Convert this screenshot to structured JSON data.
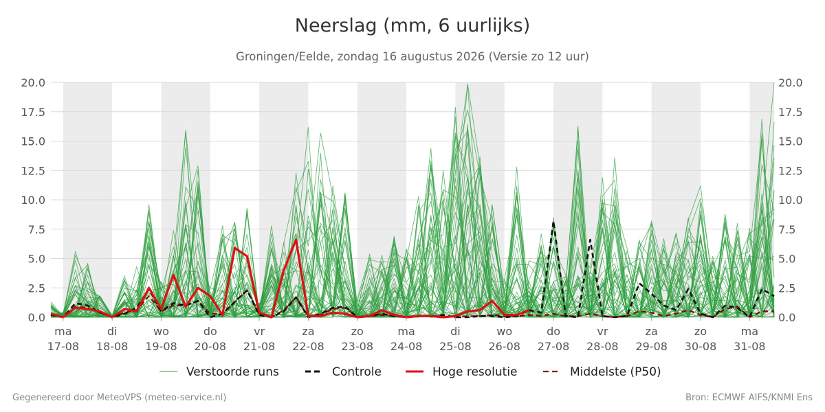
{
  "header": {
    "title": "Neerslag (mm, 6 uurlijks)",
    "subtitle": "Groningen/Eelde, zondag 16 augustus 2026 (Versie zo 12 uur)"
  },
  "footer": {
    "left": "Gegenereerd door MeteoVPS (meteo-service.nl)",
    "right": "Bron: ECMWF AIFS/KNMI Ens"
  },
  "colors": {
    "ensemble": "#2e9e3e",
    "control": "#111111",
    "high_res": "#dd1111",
    "median": "#8b0000",
    "weekend_band": "#ececec"
  },
  "chart_data": {
    "type": "line",
    "title": "Neerslag (mm, 6 uurlijks)",
    "subtitle": "Groningen/Eelde, zondag 16 augustus 2026 (Versie zo 12 uur)",
    "x_unit": "days since 17-08 00:00 (6-hourly steps)",
    "ylim": [
      0,
      20
    ],
    "yticks": [
      0.0,
      2.5,
      5.0,
      7.5,
      10.0,
      12.5,
      15.0,
      17.5,
      20.0
    ],
    "ytick_labels": [
      "0.0",
      "2.5",
      "5.0",
      "7.5",
      "10.0",
      "12.5",
      "15.0",
      "17.5",
      "20.0"
    ],
    "xlim": [
      -0.25,
      14.5
    ],
    "xticks": [
      {
        "day": "ma",
        "date": "17-08"
      },
      {
        "day": "di",
        "date": "18-08"
      },
      {
        "day": "wo",
        "date": "19-08"
      },
      {
        "day": "do",
        "date": "20-08"
      },
      {
        "day": "vr",
        "date": "21-08"
      },
      {
        "day": "za",
        "date": "22-08"
      },
      {
        "day": "zo",
        "date": "23-08"
      },
      {
        "day": "ma",
        "date": "24-08"
      },
      {
        "day": "di",
        "date": "25-08"
      },
      {
        "day": "wo",
        "date": "26-08"
      },
      {
        "day": "do",
        "date": "27-08"
      },
      {
        "day": "vr",
        "date": "28-08"
      },
      {
        "day": "za",
        "date": "29-08"
      },
      {
        "day": "zo",
        "date": "30-08"
      },
      {
        "day": "ma",
        "date": "31-08"
      }
    ],
    "shaded_bands": [
      [
        0,
        1
      ],
      [
        2,
        3
      ],
      [
        4,
        5
      ],
      [
        6,
        7
      ],
      [
        8,
        9
      ],
      [
        10,
        11
      ],
      [
        12,
        13
      ],
      [
        14,
        14.5
      ]
    ],
    "grid": true,
    "legend_position": "bottom",
    "legend": [
      "Verstoorde runs",
      "Controle",
      "Hoge resolutie",
      "Middelste (P50)"
    ],
    "series": [
      {
        "name": "Hoge resolutie",
        "style": "solid-red-thick",
        "x": [
          -0.25,
          0,
          0.25,
          0.5,
          0.75,
          1,
          1.25,
          1.5,
          1.75,
          2,
          2.25,
          2.5,
          2.75,
          3,
          3.25,
          3.5,
          3.75,
          4,
          4.25,
          4.5,
          4.75,
          5,
          5.25,
          5.5,
          5.75,
          6,
          6.25,
          6.5,
          6.75,
          7,
          7.25,
          7.5,
          7.75,
          8,
          8.25,
          8.5,
          8.75,
          9,
          9.25,
          9.5
        ],
        "y": [
          0.3,
          0.0,
          0.8,
          0.7,
          0.5,
          0.0,
          0.7,
          0.5,
          2.5,
          0.7,
          3.6,
          0.9,
          2.5,
          1.8,
          0.2,
          5.9,
          5.2,
          0.4,
          0.0,
          4.0,
          6.6,
          0.1,
          0.1,
          0.4,
          0.3,
          0.0,
          0.1,
          0.6,
          0.2,
          0.0,
          0.1,
          0.1,
          0.0,
          0.1,
          0.5,
          0.6,
          1.4,
          0.2,
          0.2,
          0.6
        ]
      },
      {
        "name": "Controle",
        "style": "dashed-black",
        "x": [
          -0.25,
          0,
          0.25,
          0.5,
          0.75,
          1,
          1.25,
          1.5,
          1.75,
          2,
          2.25,
          2.5,
          2.75,
          3,
          3.25,
          3.5,
          3.75,
          4,
          4.25,
          4.5,
          4.75,
          5,
          5.25,
          5.5,
          5.75,
          6,
          6.25,
          6.5,
          6.75,
          7,
          7.25,
          7.5,
          7.75,
          8,
          8.25,
          8.5,
          8.75,
          9,
          9.25,
          9.5,
          9.75,
          10,
          10.25,
          10.5,
          10.75,
          11,
          11.25,
          11.5,
          11.75,
          12,
          12.25,
          12.5,
          12.75,
          13,
          13.25,
          13.5,
          13.75,
          14,
          14.25,
          14.5
        ],
        "y": [
          0.2,
          0.0,
          1.2,
          1.0,
          0.4,
          0.0,
          0.3,
          0.8,
          2.4,
          0.5,
          1.2,
          1.0,
          1.4,
          0.0,
          0.3,
          1.3,
          2.3,
          0.2,
          0.0,
          0.5,
          1.7,
          0.0,
          0.3,
          0.8,
          0.9,
          0.0,
          0.1,
          0.3,
          0.1,
          0.0,
          0.1,
          0.1,
          0.2,
          0.0,
          0.0,
          0.1,
          0.1,
          0.0,
          0.1,
          0.6,
          0.4,
          8.2,
          0.1,
          0.0,
          6.6,
          0.1,
          0.0,
          0.1,
          2.9,
          2.0,
          1.0,
          0.6,
          2.4,
          0.3,
          0.0,
          1.0,
          0.8,
          0.0,
          2.4,
          1.8
        ]
      },
      {
        "name": "Middelste (P50)",
        "style": "dashed-darkred",
        "x": [
          -0.25,
          0,
          0.25,
          0.5,
          0.75,
          1,
          1.25,
          1.5,
          1.75,
          2,
          2.25,
          2.5,
          2.75,
          3,
          3.25,
          3.5,
          3.75,
          4,
          4.25,
          4.5,
          4.75,
          5,
          5.25,
          5.5,
          5.75,
          6,
          6.25,
          6.5,
          6.75,
          7,
          7.25,
          7.5,
          7.75,
          8,
          8.25,
          8.5,
          8.75,
          9,
          9.25,
          9.5,
          9.75,
          10,
          10.25,
          10.5,
          10.75,
          11,
          11.25,
          11.5,
          11.75,
          12,
          12.25,
          12.5,
          12.75,
          13,
          13.25,
          13.5,
          13.75,
          14,
          14.25,
          14.5
        ],
        "y": [
          0.2,
          0.0,
          0.9,
          0.8,
          0.4,
          0.0,
          0.4,
          0.6,
          1.8,
          0.5,
          1.0,
          1.0,
          1.4,
          0.3,
          0.3,
          1.3,
          2.3,
          0.3,
          0.0,
          0.6,
          1.7,
          0.1,
          0.2,
          0.7,
          0.8,
          0.0,
          0.1,
          0.2,
          0.1,
          0.0,
          0.1,
          0.1,
          0.1,
          0.0,
          0.1,
          0.1,
          0.2,
          0.1,
          0.1,
          0.2,
          0.1,
          0.3,
          0.1,
          0.1,
          0.3,
          0.1,
          0.0,
          0.1,
          0.5,
          0.4,
          0.1,
          0.3,
          0.6,
          0.2,
          0.0,
          0.7,
          0.9,
          0.0,
          0.5,
          0.5
        ]
      },
      {
        "name": "Verstoorde runs",
        "style": "thin-green-ensemble",
        "member_count": 50,
        "x": [
          -0.25,
          0,
          0.25,
          0.5,
          0.75,
          1,
          1.25,
          1.5,
          1.75,
          2,
          2.25,
          2.5,
          2.75,
          3,
          3.25,
          3.5,
          3.75,
          4,
          4.25,
          4.5,
          4.75,
          5,
          5.25,
          5.5,
          5.75,
          6,
          6.25,
          6.5,
          6.75,
          7,
          7.25,
          7.5,
          7.75,
          8,
          8.25,
          8.5,
          8.75,
          9,
          9.25,
          9.5,
          9.75,
          10,
          10.25,
          10.5,
          10.75,
          11,
          11.25,
          11.5,
          11.75,
          12,
          12.25,
          12.5,
          12.75,
          13,
          13.25,
          13.5,
          13.75,
          14,
          14.25,
          14.5
        ],
        "ensemble_max": [
          1.3,
          0.4,
          5.6,
          4.6,
          1.8,
          0.2,
          3.5,
          4.3,
          9.6,
          3.0,
          7.4,
          15.9,
          12.9,
          2.5,
          7.8,
          8.1,
          9.3,
          1.2,
          7.8,
          6.4,
          12.3,
          16.2,
          15.7,
          11.2,
          10.6,
          1.6,
          5.4,
          5.3,
          6.9,
          5.8,
          10.3,
          14.4,
          12.5,
          17.9,
          19.9,
          13.7,
          9.6,
          3.2,
          12.8,
          4.8,
          7.1,
          8.5,
          3.6,
          16.3,
          4.2,
          11.9,
          13.6,
          5.9,
          6.6,
          8.2,
          6.7,
          7.2,
          8.5,
          11.2,
          5.2,
          8.8,
          8.0,
          7.6,
          16.9,
          20.0
        ]
      }
    ]
  }
}
